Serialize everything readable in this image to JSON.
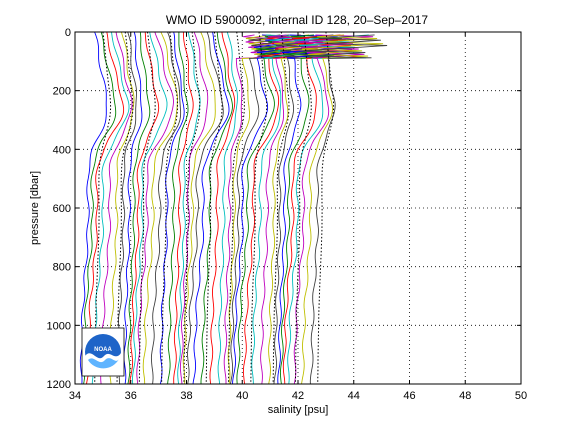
{
  "chart_data": {
    "type": "line",
    "title": "WMO ID 5900092, internal ID 128, 20–Sep–2017",
    "xlabel": "salinity [psu]",
    "ylabel": "pressure [dbar]",
    "xlim": [
      34,
      50
    ],
    "ylim": [
      0,
      1200
    ],
    "y_reversed": true,
    "grid": true,
    "x_ticks": [
      "34",
      "36",
      "38",
      "40",
      "42",
      "44",
      "46",
      "48",
      "50"
    ],
    "y_ticks": [
      "0",
      "200",
      "400",
      "600",
      "800",
      "1000",
      "1200"
    ],
    "logo_text": "NOAA",
    "profile_count": 42,
    "profile_offset_step_psu": 0.2,
    "profile_base_salinity_psu": 34.7,
    "series_colors": [
      "#0000ff",
      "#008000",
      "#ff0000",
      "#00bfbf",
      "#bf00bf",
      "#bfbf00",
      "#404040"
    ]
  }
}
